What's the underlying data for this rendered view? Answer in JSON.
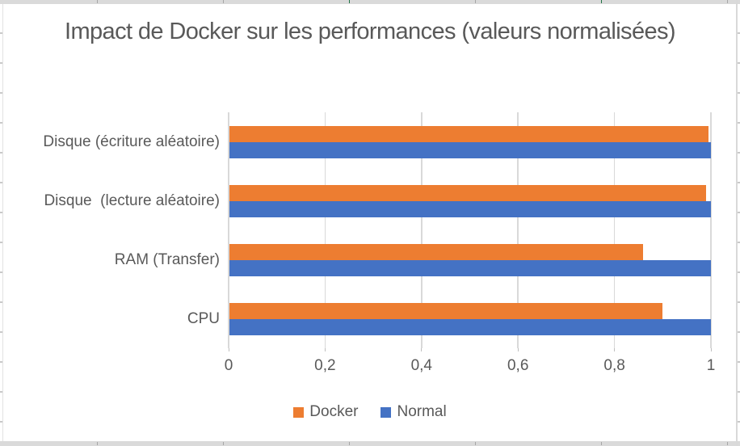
{
  "chart_data": {
    "type": "bar",
    "orientation": "horizontal",
    "title": "Impact de Docker sur les performances (valeurs normalisées)",
    "categories": [
      "Disque (écriture aléatoire)",
      "Disque  (lecture aléatoire)",
      "RAM (Transfer)",
      "CPU"
    ],
    "series": [
      {
        "name": "Docker",
        "color": "#ED7D31",
        "values": [
          0.995,
          0.99,
          0.86,
          0.9
        ]
      },
      {
        "name": "Normal",
        "color": "#4472C4",
        "values": [
          1,
          1,
          1,
          1
        ]
      }
    ],
    "series_order_note": "Docker bar drawn above Normal bar in each category group",
    "x_ticks": {
      "labels": [
        "0",
        "0,2",
        "0,4",
        "0,6",
        "0,8",
        "1"
      ],
      "values": [
        0,
        0.2,
        0.4,
        0.6,
        0.8,
        1
      ]
    },
    "xlim": [
      0,
      1
    ],
    "xlabel": "",
    "ylabel": "",
    "grid": true,
    "legend_position": "bottom",
    "colors": {
      "text": "#595959",
      "gridline": "#d9d9d9",
      "axis": "#d9d9d9",
      "plot_background": "#ffffff"
    }
  }
}
